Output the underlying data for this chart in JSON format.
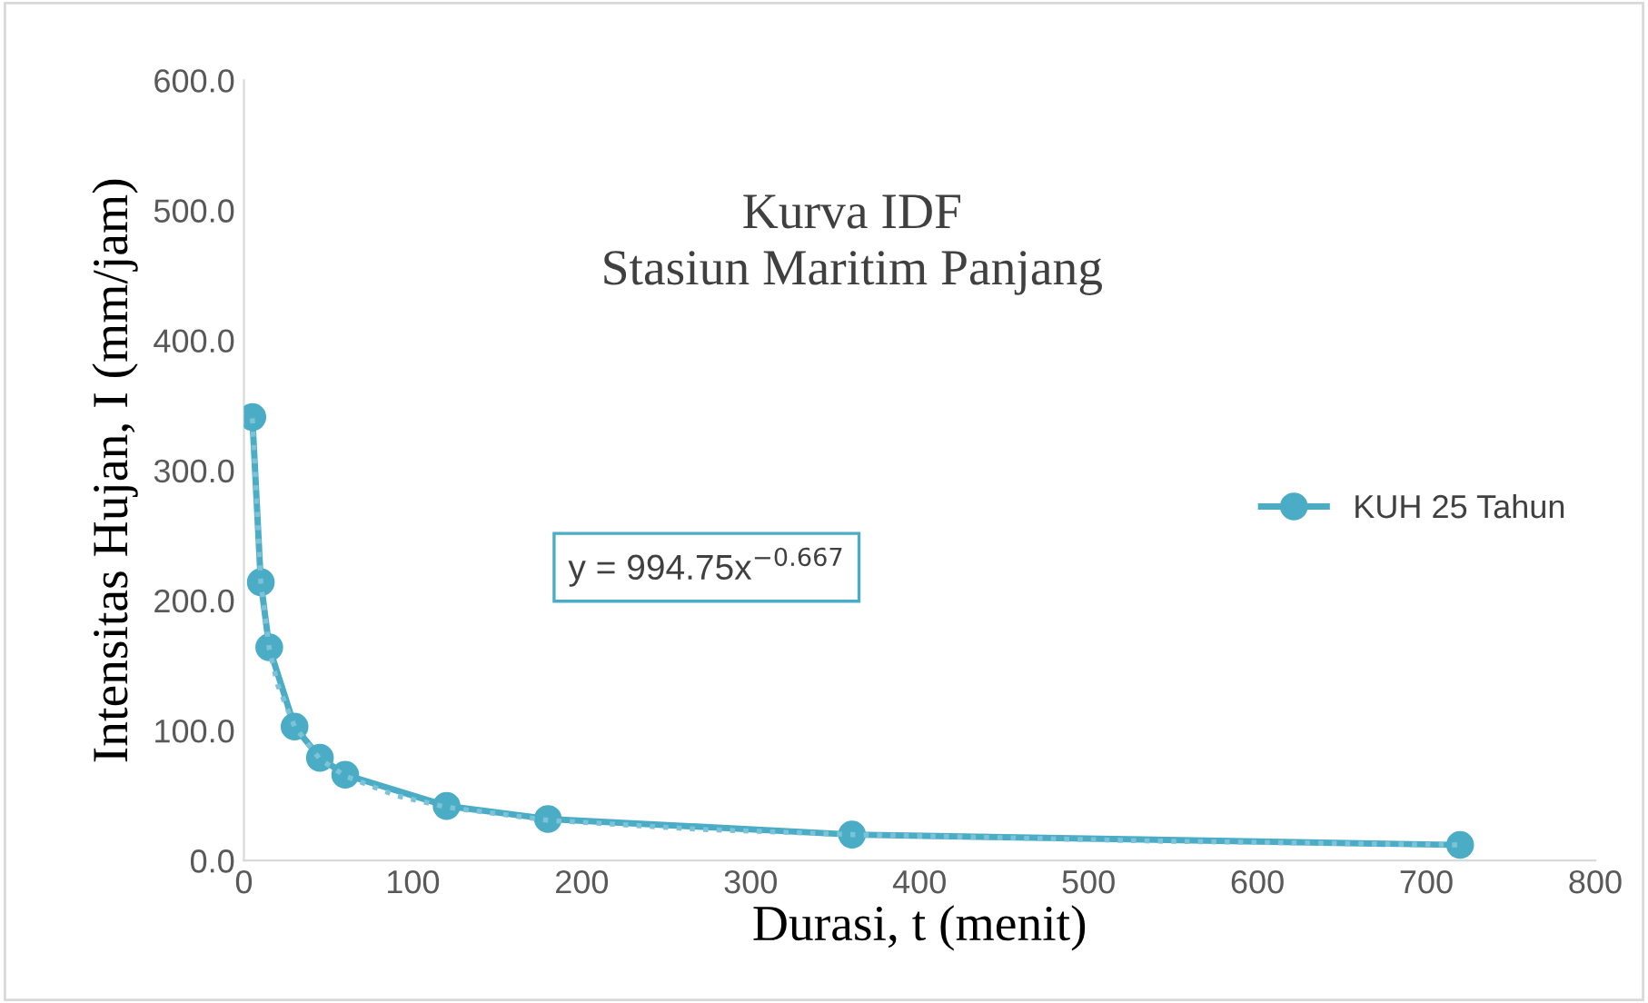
{
  "chart_data": {
    "type": "line",
    "title": "Kurva IDF\nStasiun Maritim Panjang",
    "xlabel": "Durasi, t (menit)",
    "ylabel": "Intensitas Hujan, I (mm/jam)",
    "series": [
      {
        "name": "KUH 25 Tahun",
        "color": "#4bacc6",
        "x": [
          5,
          10,
          15,
          30,
          45,
          60,
          120,
          180,
          360,
          720
        ],
        "values": [
          341,
          214,
          164,
          103,
          79,
          66,
          42,
          32,
          20,
          12
        ],
        "marker": "circle",
        "line_style": "solid"
      },
      {
        "type": "line",
        "color": "#7cc3d8",
        "x": [
          5,
          10,
          15,
          20,
          30,
          45,
          60,
          90,
          120,
          180,
          270,
          360,
          540,
          720
        ],
        "values": [
          340,
          214,
          163,
          135,
          103,
          78,
          65,
          50,
          41,
          31,
          24,
          20,
          15,
          12
        ],
        "marker": "none",
        "line_style": "dotted"
      }
    ],
    "annotations": [
      "y = 994.75x$^{−0.667}$"
    ],
    "xlim": [
      0,
      800
    ],
    "xticks": [
      0,
      100,
      200,
      300,
      400,
      500,
      600,
      700,
      800
    ],
    "ylim": [
      0,
      600
    ],
    "yticks": [
      {
        "value": 0,
        "label": "0.0"
      },
      {
        "value": 100,
        "label": "100.0"
      },
      {
        "value": 200,
        "label": "200.0"
      },
      {
        "value": 300,
        "label": "300.0"
      },
      {
        "value": 400,
        "label": "400.0"
      },
      {
        "value": 500,
        "label": "500.0"
      },
      {
        "value": 600,
        "label": "600.0"
      }
    ],
    "grid": false,
    "legend": "right"
  }
}
